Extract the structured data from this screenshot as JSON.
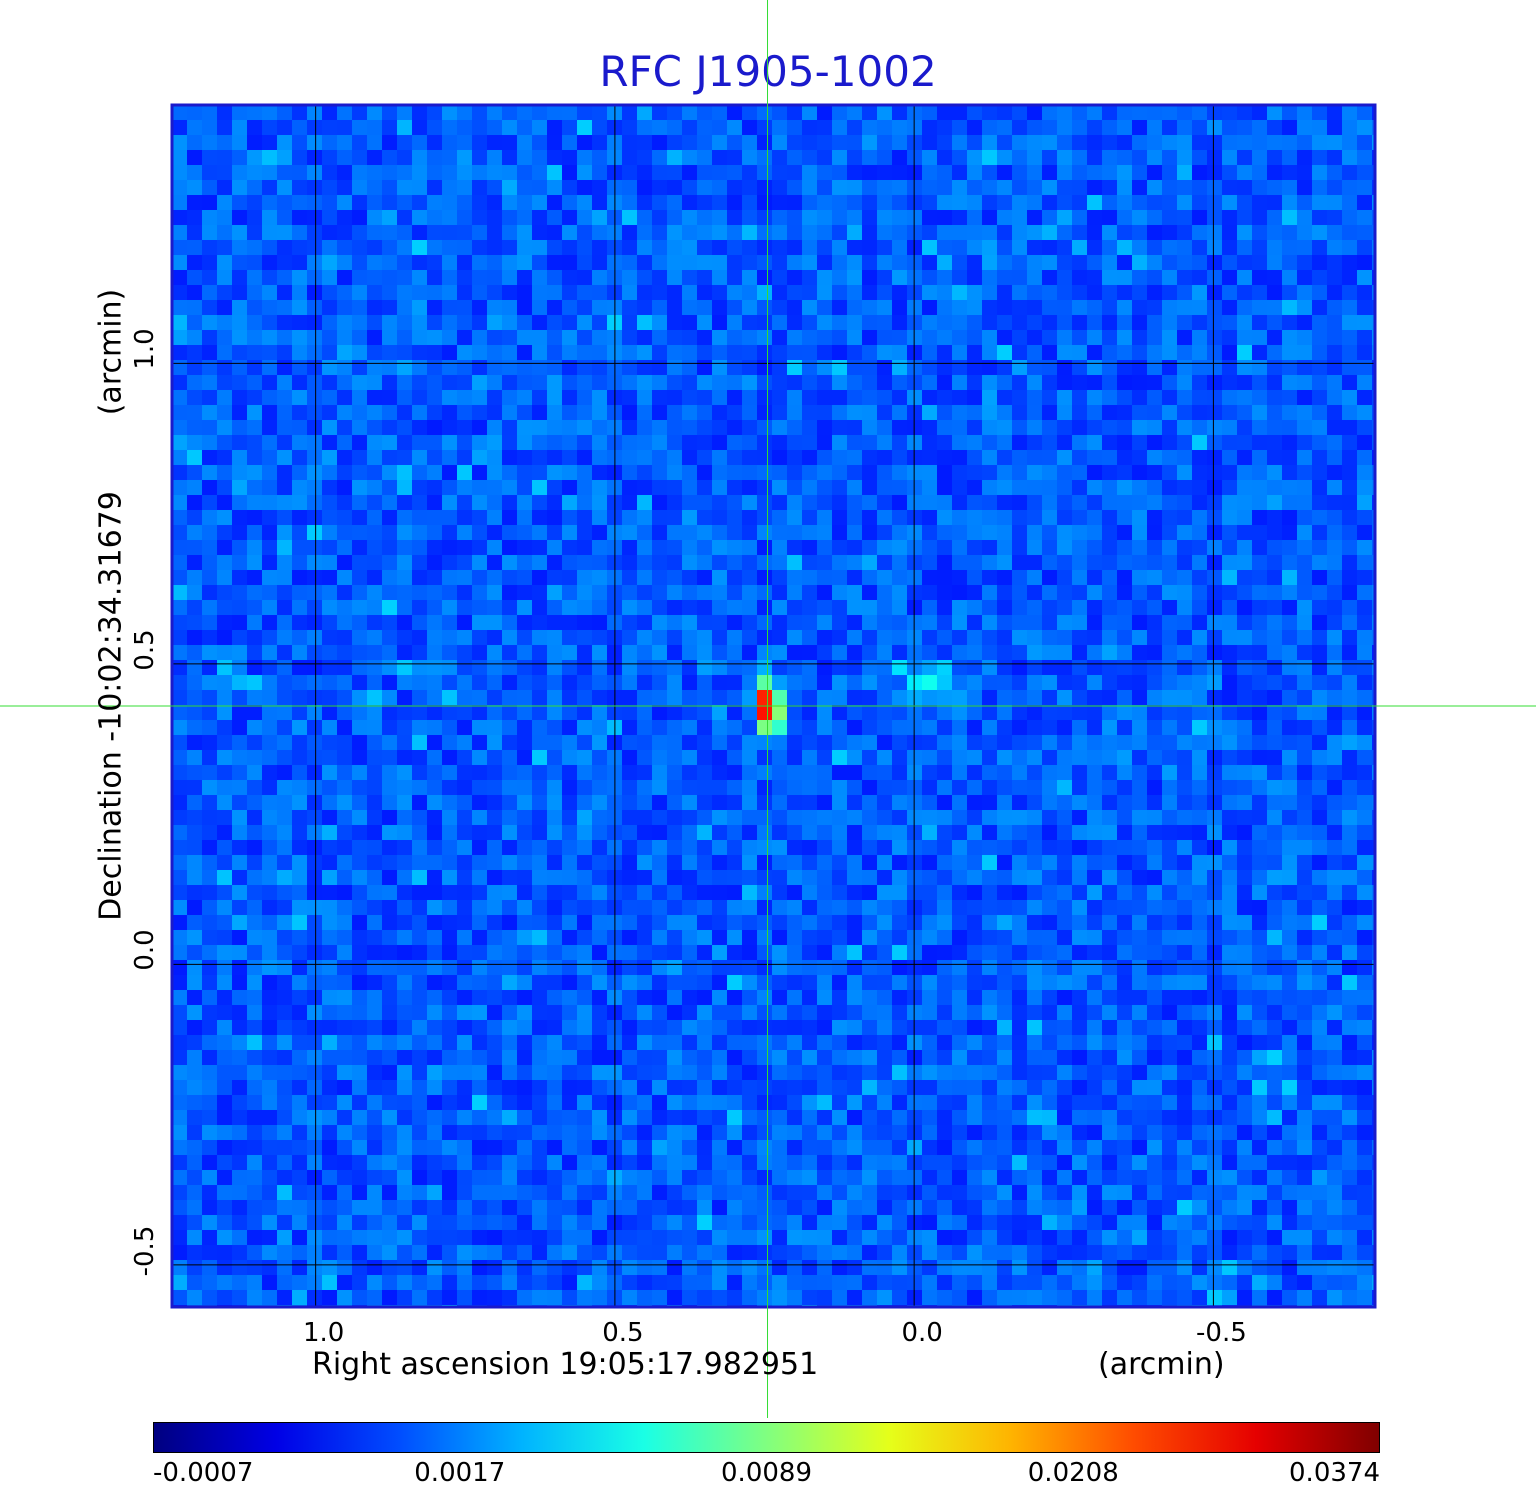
{
  "chart_data": {
    "type": "heatmap",
    "title": "RFC J1905-1002",
    "xlabel": "Right ascension  19:05:17.982951",
    "xunit": "(arcmin)",
    "ylabel": "Declination  -10:02:34.31679",
    "yunit": "(arcmin)",
    "x_ticks": [
      "1.0",
      "0.5",
      "0.0",
      "-0.5"
    ],
    "x_tick_values": [
      1.0,
      0.5,
      0.0,
      -0.5
    ],
    "y_ticks": [
      "1.0",
      "0.5",
      "0.0",
      "-0.5"
    ],
    "y_tick_values": [
      1.0,
      0.5,
      0.0,
      -0.5
    ],
    "xlim": [
      1.24,
      -0.77
    ],
    "ylim": [
      -0.57,
      1.43
    ],
    "grid": true,
    "crosshair": {
      "x": 0.245,
      "y": 0.43,
      "color": "#33dd33"
    },
    "sources": [
      {
        "x": 0.245,
        "y": 0.43,
        "peak": 0.0374
      },
      {
        "x": -0.03,
        "y": 0.47,
        "peak": 0.006
      }
    ],
    "colorbar": {
      "colormap": "jet",
      "ticks": [
        "-0.0007",
        "0.0017",
        "0.0089",
        "0.0208",
        "0.0374"
      ],
      "tick_values": [
        -0.0007,
        0.0017,
        0.0089,
        0.0208,
        0.0374
      ]
    },
    "colors": {
      "frame": "#1a1acc",
      "background_noise": "#1e5af5",
      "title": "#1a1acc"
    }
  }
}
